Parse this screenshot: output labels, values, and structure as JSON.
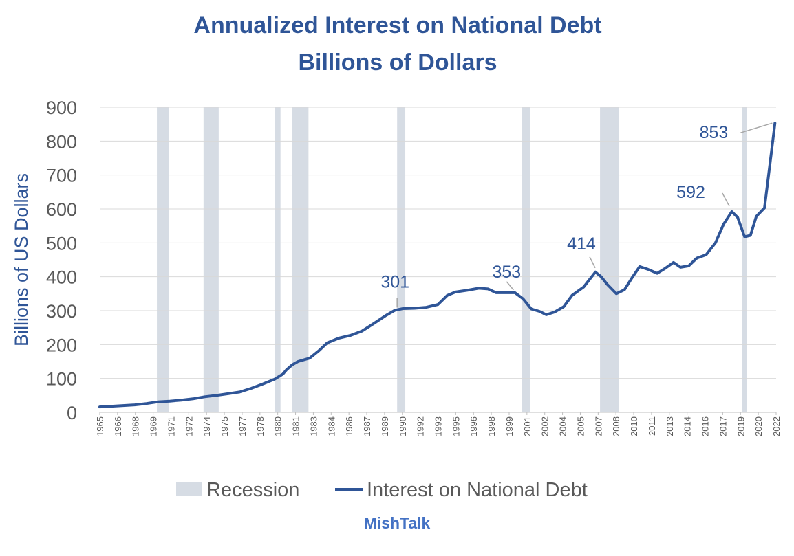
{
  "chart_data": {
    "type": "line",
    "title": "Annualized Interest on National Debt",
    "subtitle": "Billions of Dollars",
    "ylabel": "Billions of US Dollars",
    "xlabel": "",
    "ylim": [
      0,
      900
    ],
    "yticks": [
      0,
      100,
      200,
      300,
      400,
      500,
      600,
      700,
      800,
      900
    ],
    "xlim": [
      1965.0,
      2023.0
    ],
    "xtick_labels": [
      "1965",
      "1966",
      "1968",
      "1969",
      "1971",
      "1972",
      "1974",
      "1975",
      "1977",
      "1978",
      "1980",
      "1981",
      "1983",
      "1984",
      "1986",
      "1987",
      "1989",
      "1990",
      "1992",
      "1993",
      "1995",
      "1996",
      "1998",
      "1999",
      "2001",
      "2002",
      "2004",
      "2005",
      "2007",
      "2008",
      "2010",
      "2011",
      "2013",
      "2014",
      "2016",
      "2017",
      "2019",
      "2020",
      "2022"
    ],
    "grid": "horizontal",
    "legend_position": "bottom",
    "colors": {
      "line": "#2F5597",
      "recession": "#D6DCE4",
      "annotation_leader": "#A6A6A6"
    },
    "series": [
      {
        "name": "Interest on National Debt",
        "kind": "line",
        "points": [
          [
            1965.0,
            16
          ],
          [
            1966.0,
            18
          ],
          [
            1967.0,
            20
          ],
          [
            1968.0,
            22
          ],
          [
            1969.0,
            26
          ],
          [
            1970.0,
            31
          ],
          [
            1971.0,
            33
          ],
          [
            1972.0,
            36
          ],
          [
            1973.0,
            40
          ],
          [
            1974.0,
            46
          ],
          [
            1975.0,
            50
          ],
          [
            1976.0,
            55
          ],
          [
            1977.0,
            60
          ],
          [
            1978.0,
            71
          ],
          [
            1979.0,
            84
          ],
          [
            1980.0,
            98
          ],
          [
            1980.7,
            113
          ],
          [
            1981.0,
            125
          ],
          [
            1981.5,
            140
          ],
          [
            1982.0,
            150
          ],
          [
            1983.0,
            160
          ],
          [
            1983.8,
            182
          ],
          [
            1984.5,
            205
          ],
          [
            1985.5,
            219
          ],
          [
            1986.5,
            227
          ],
          [
            1987.5,
            240
          ],
          [
            1988.5,
            262
          ],
          [
            1989.5,
            285
          ],
          [
            1990.3,
            301
          ],
          [
            1991.0,
            306
          ],
          [
            1992.0,
            307
          ],
          [
            1993.0,
            310
          ],
          [
            1994.0,
            318
          ],
          [
            1994.8,
            345
          ],
          [
            1995.5,
            355
          ],
          [
            1996.5,
            360
          ],
          [
            1997.5,
            366
          ],
          [
            1998.3,
            364
          ],
          [
            1999.0,
            353
          ],
          [
            1999.8,
            353
          ],
          [
            2000.6,
            353
          ],
          [
            2001.3,
            335
          ],
          [
            2002.0,
            305
          ],
          [
            2002.7,
            298
          ],
          [
            2003.3,
            288
          ],
          [
            2004.0,
            296
          ],
          [
            2004.8,
            312
          ],
          [
            2005.5,
            345
          ],
          [
            2006.5,
            370
          ],
          [
            2007.5,
            414
          ],
          [
            2008.0,
            400
          ],
          [
            2008.5,
            378
          ],
          [
            2009.3,
            350
          ],
          [
            2010.0,
            362
          ],
          [
            2010.7,
            400
          ],
          [
            2011.3,
            430
          ],
          [
            2012.0,
            422
          ],
          [
            2012.8,
            410
          ],
          [
            2013.5,
            425
          ],
          [
            2014.2,
            442
          ],
          [
            2014.8,
            428
          ],
          [
            2015.5,
            432
          ],
          [
            2016.2,
            455
          ],
          [
            2017.0,
            465
          ],
          [
            2017.8,
            500
          ],
          [
            2018.5,
            555
          ],
          [
            2019.2,
            592
          ],
          [
            2019.7,
            575
          ],
          [
            2020.3,
            518
          ],
          [
            2020.8,
            522
          ],
          [
            2021.3,
            578
          ],
          [
            2022.0,
            603
          ],
          [
            2022.5,
            740
          ],
          [
            2022.9,
            853
          ]
        ]
      },
      {
        "name": "Recession",
        "kind": "band",
        "periods": [
          [
            1969.9,
            1970.9
          ],
          [
            1973.9,
            1975.2
          ],
          [
            1980.0,
            1980.5
          ],
          [
            1981.5,
            1982.9
          ],
          [
            1990.5,
            1991.2
          ],
          [
            2001.2,
            2001.9
          ],
          [
            2007.9,
            2009.5
          ],
          [
            2020.1,
            2020.5
          ]
        ]
      }
    ],
    "annotations": [
      {
        "label": "301",
        "x": 1990.5,
        "y": 301
      },
      {
        "label": "353",
        "x": 2000.6,
        "y": 353
      },
      {
        "label": "414",
        "x": 2007.6,
        "y": 414
      },
      {
        "label": "592",
        "x": 2019.1,
        "y": 592
      },
      {
        "label": "853",
        "x": 2022.9,
        "y": 853
      }
    ],
    "source": "MishTalk"
  }
}
